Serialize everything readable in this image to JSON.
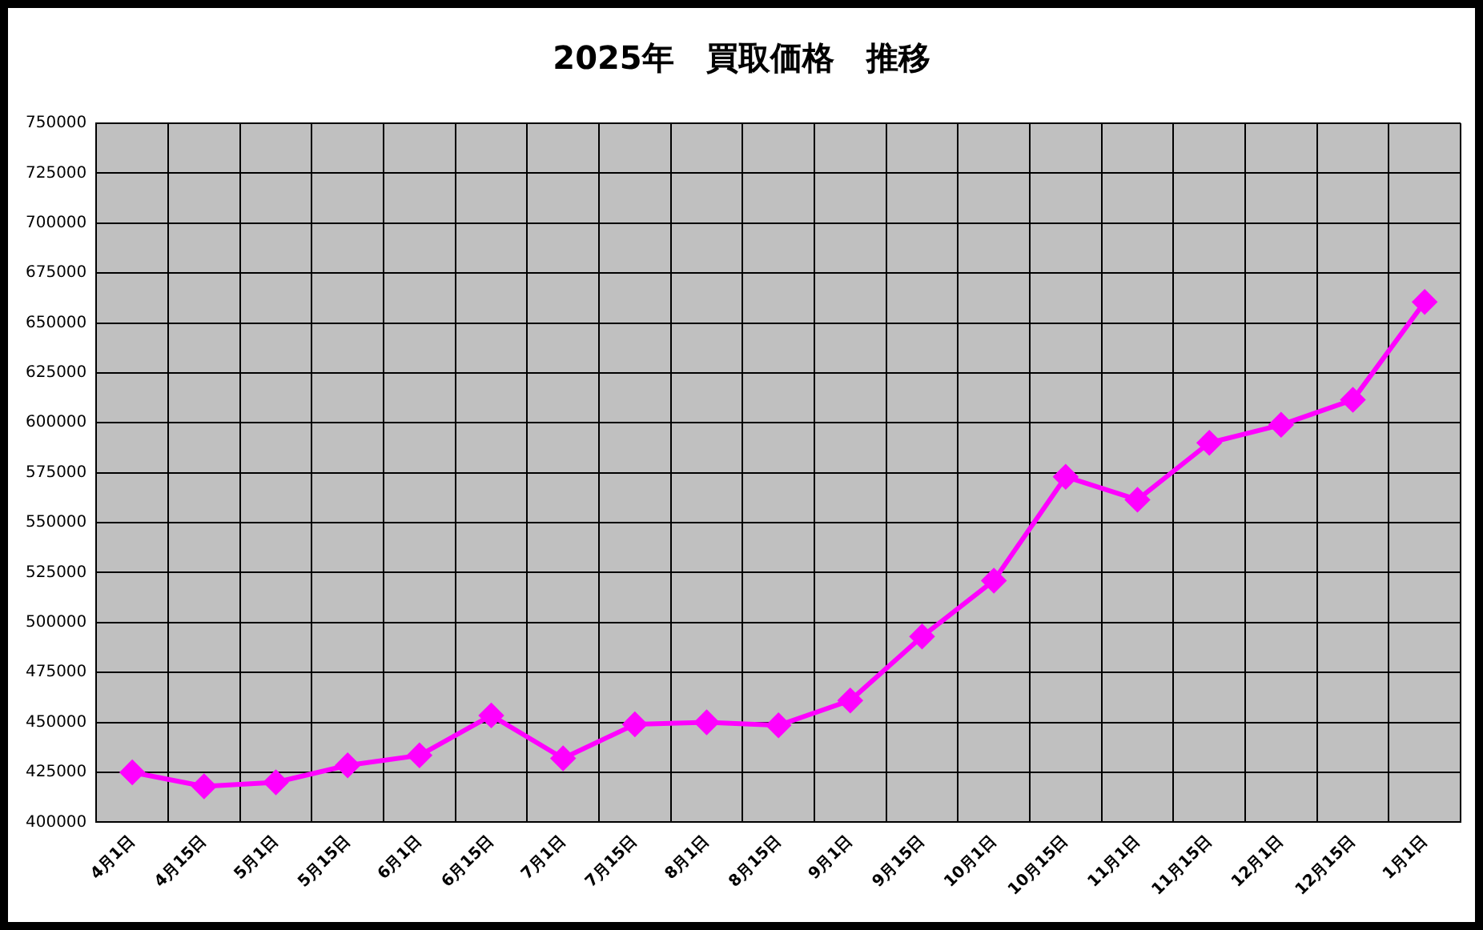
{
  "chart_data": {
    "type": "line",
    "title": "2025年　買取価格　推移",
    "categories": [
      "4月1日",
      "4月15日",
      "5月1日",
      "5月15日",
      "6月1日",
      "6月15日",
      "7月1日",
      "7月15日",
      "8月1日",
      "8月15日",
      "9月1日",
      "9月15日",
      "10月1日",
      "10月15日",
      "11月1日",
      "11月15日",
      "12月1日",
      "12月15日",
      "1月1日"
    ],
    "series": [
      {
        "color": "#ff00ff",
        "values": [
          425000,
          418000,
          420000,
          428500,
          433500,
          453500,
          432000,
          449000,
          450000,
          448500,
          461000,
          493000,
          521000,
          573000,
          561500,
          590000,
          599000,
          611500,
          660500
        ]
      }
    ],
    "ylim": [
      400000,
      750000
    ],
    "yticks": [
      400000,
      425000,
      450000,
      475000,
      500000,
      525000,
      550000,
      575000,
      600000,
      625000,
      650000,
      675000,
      700000,
      725000,
      750000
    ],
    "grid": true,
    "legend": false,
    "marker": "diamond",
    "line_style": "solid"
  }
}
